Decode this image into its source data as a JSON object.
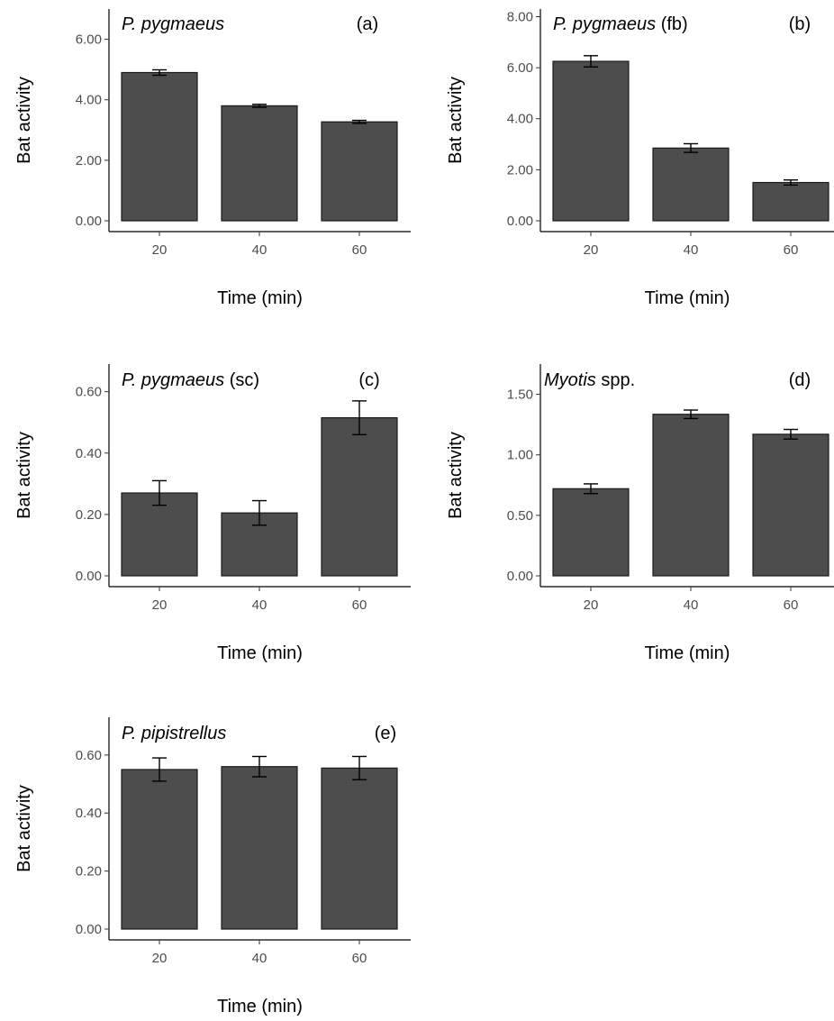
{
  "chart_data": [
    {
      "type": "bar",
      "title": {
        "species_italic": "P. pygmaeus",
        "species_suffix": "",
        "panel": "(a)"
      },
      "xlabel": "Time (min)",
      "ylabel": "Bat activity",
      "categories": [
        "20",
        "40",
        "60"
      ],
      "values": [
        4.9,
        3.8,
        3.27
      ],
      "errors": [
        0.09,
        0.05,
        0.05
      ],
      "ylim": [
        0,
        7
      ],
      "yticks": [
        0,
        2,
        4,
        6
      ],
      "ytick_labels": [
        "0.00",
        "2.00",
        "4.00",
        "6.00"
      ],
      "bar_color": "#4d4d4d"
    },
    {
      "type": "bar",
      "title": {
        "species_italic": "P. pygmaeus",
        "species_suffix": " (fb)",
        "panel": "(b)"
      },
      "xlabel": "Time (min)",
      "ylabel": "Bat activity",
      "categories": [
        "20",
        "40",
        "60"
      ],
      "values": [
        6.25,
        2.85,
        1.5
      ],
      "errors": [
        0.22,
        0.17,
        0.1
      ],
      "ylim": [
        0,
        8.3
      ],
      "yticks": [
        0,
        2,
        4,
        6,
        8
      ],
      "ytick_labels": [
        "0.00",
        "2.00",
        "4.00",
        "6.00",
        "8.00"
      ],
      "bar_color": "#4d4d4d"
    },
    {
      "type": "bar",
      "title": {
        "species_italic": "P. pygmaeus",
        "species_suffix": " (sc)",
        "panel": "(c)"
      },
      "xlabel": "Time (min)",
      "ylabel": "Bat activity",
      "categories": [
        "20",
        "40",
        "60"
      ],
      "values": [
        0.27,
        0.205,
        0.515
      ],
      "errors": [
        0.04,
        0.04,
        0.055
      ],
      "ylim": [
        0,
        0.69
      ],
      "yticks": [
        0,
        0.2,
        0.4,
        0.6
      ],
      "ytick_labels": [
        "0.00",
        "0.20",
        "0.40",
        "0.60"
      ],
      "bar_color": "#4d4d4d"
    },
    {
      "type": "bar",
      "title": {
        "species_italic": "Myotis",
        "species_suffix": " spp.",
        "panel": "(d)"
      },
      "xlabel": "Time (min)",
      "ylabel": "Bat activity",
      "categories": [
        "20",
        "40",
        "60"
      ],
      "values": [
        0.72,
        1.335,
        1.17
      ],
      "errors": [
        0.04,
        0.035,
        0.04
      ],
      "ylim": [
        0,
        1.75
      ],
      "yticks": [
        0,
        0.5,
        1,
        1.5
      ],
      "ytick_labels": [
        "0.00",
        "0.50",
        "1.00",
        "1.50"
      ],
      "bar_color": "#4d4d4d"
    },
    {
      "type": "bar",
      "title": {
        "species_italic": "P. pipistrellus",
        "species_suffix": "",
        "panel": "(e)"
      },
      "xlabel": "Time (min)",
      "ylabel": "Bat activity",
      "categories": [
        "20",
        "40",
        "60"
      ],
      "values": [
        0.55,
        0.56,
        0.555
      ],
      "errors": [
        0.04,
        0.035,
        0.04
      ],
      "ylim": [
        0,
        0.73
      ],
      "yticks": [
        0,
        0.2,
        0.4,
        0.6
      ],
      "ytick_labels": [
        "0.00",
        "0.20",
        "0.40",
        "0.60"
      ],
      "bar_color": "#4d4d4d"
    }
  ]
}
